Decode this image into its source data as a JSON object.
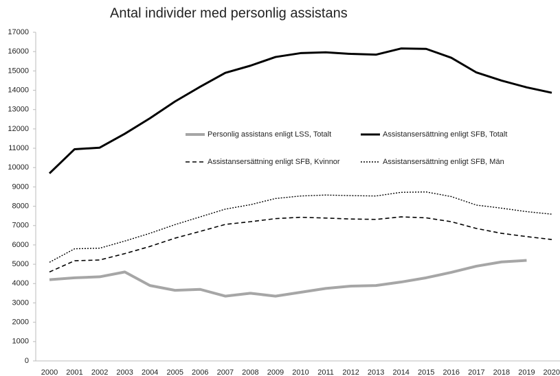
{
  "chart_data": {
    "type": "line",
    "title": "Antal individer med personlig assistans",
    "categories": [
      "2000",
      "2001",
      "2002",
      "2003",
      "2004",
      "2005",
      "2006",
      "2007",
      "2008",
      "2009",
      "2010",
      "2011",
      "2012",
      "2013",
      "2014",
      "2015",
      "2016",
      "2017",
      "2018",
      "2019",
      "2020"
    ],
    "series": [
      {
        "name": "Personlig assistans enligt LSS, Totalt",
        "color": "#a6a6a6",
        "dash": "solid",
        "line_width": 4,
        "values": [
          4200,
          4300,
          4350,
          4600,
          3900,
          3650,
          3700,
          3350,
          3500,
          3350,
          3550,
          3750,
          3870,
          3900,
          4080,
          4300,
          4580,
          4900,
          5120,
          5200,
          null
        ]
      },
      {
        "name": "Assistansersättning enligt SFB, Totalt",
        "color": "#000000",
        "dash": "solid",
        "line_width": 3,
        "values": [
          9700,
          10950,
          11030,
          11750,
          12550,
          13420,
          14180,
          14900,
          15270,
          15720,
          15920,
          15960,
          15880,
          15840,
          16160,
          16140,
          15680,
          14920,
          14500,
          14150,
          13870
        ]
      },
      {
        "name": "Assistansersättning enligt SFB, Kvinnor",
        "color": "#000000",
        "dash": "dashed",
        "line_width": 1.6,
        "values": [
          4600,
          5180,
          5220,
          5550,
          5920,
          6350,
          6700,
          7060,
          7200,
          7360,
          7430,
          7390,
          7340,
          7320,
          7450,
          7400,
          7200,
          6850,
          6600,
          6430,
          6280
        ]
      },
      {
        "name": "Assistansersättning enligt SFB, Män",
        "color": "#000000",
        "dash": "dotted",
        "line_width": 1.4,
        "values": [
          5100,
          5800,
          5830,
          6200,
          6600,
          7050,
          7450,
          7850,
          8080,
          8400,
          8530,
          8580,
          8550,
          8530,
          8720,
          8740,
          8500,
          8060,
          7900,
          7720,
          7590
        ]
      }
    ],
    "ylim": [
      0,
      17000
    ],
    "yticks": [
      0,
      1000,
      2000,
      3000,
      4000,
      5000,
      6000,
      7000,
      8000,
      9000,
      10000,
      11000,
      12000,
      13000,
      14000,
      15000,
      16000,
      17000
    ],
    "grid": false
  }
}
